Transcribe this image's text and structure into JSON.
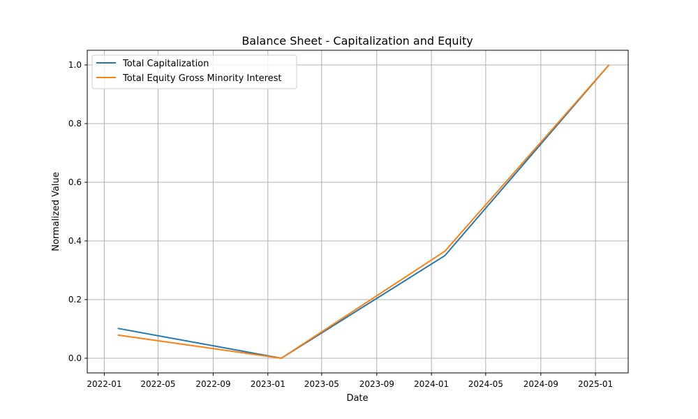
{
  "chart_data": {
    "type": "line",
    "title": "Balance Sheet - Capitalization and Equity",
    "xlabel": "Date",
    "ylabel": "Normalized Value",
    "xlim": [
      "2021-11-24",
      "2025-03-15"
    ],
    "ylim": [
      -0.05,
      1.05
    ],
    "x_ticks": [
      "2022-01",
      "2022-05",
      "2022-09",
      "2023-01",
      "2023-05",
      "2023-09",
      "2024-01",
      "2024-05",
      "2024-09",
      "2025-01"
    ],
    "y_ticks": [
      "0.0",
      "0.2",
      "0.4",
      "0.6",
      "0.8",
      "1.0"
    ],
    "grid": true,
    "legend_position": "top-left",
    "x": [
      "2022-01-31",
      "2023-01-31",
      "2024-01-31",
      "2025-01-31"
    ],
    "series": [
      {
        "name": "Total Capitalization",
        "color": "#1f77b4",
        "values": [
          0.102,
          0.0,
          0.35,
          1.0
        ]
      },
      {
        "name": "Total Equity Gross Minority Interest",
        "color": "#ff7f0e",
        "values": [
          0.079,
          0.0,
          0.365,
          1.0
        ]
      }
    ]
  }
}
